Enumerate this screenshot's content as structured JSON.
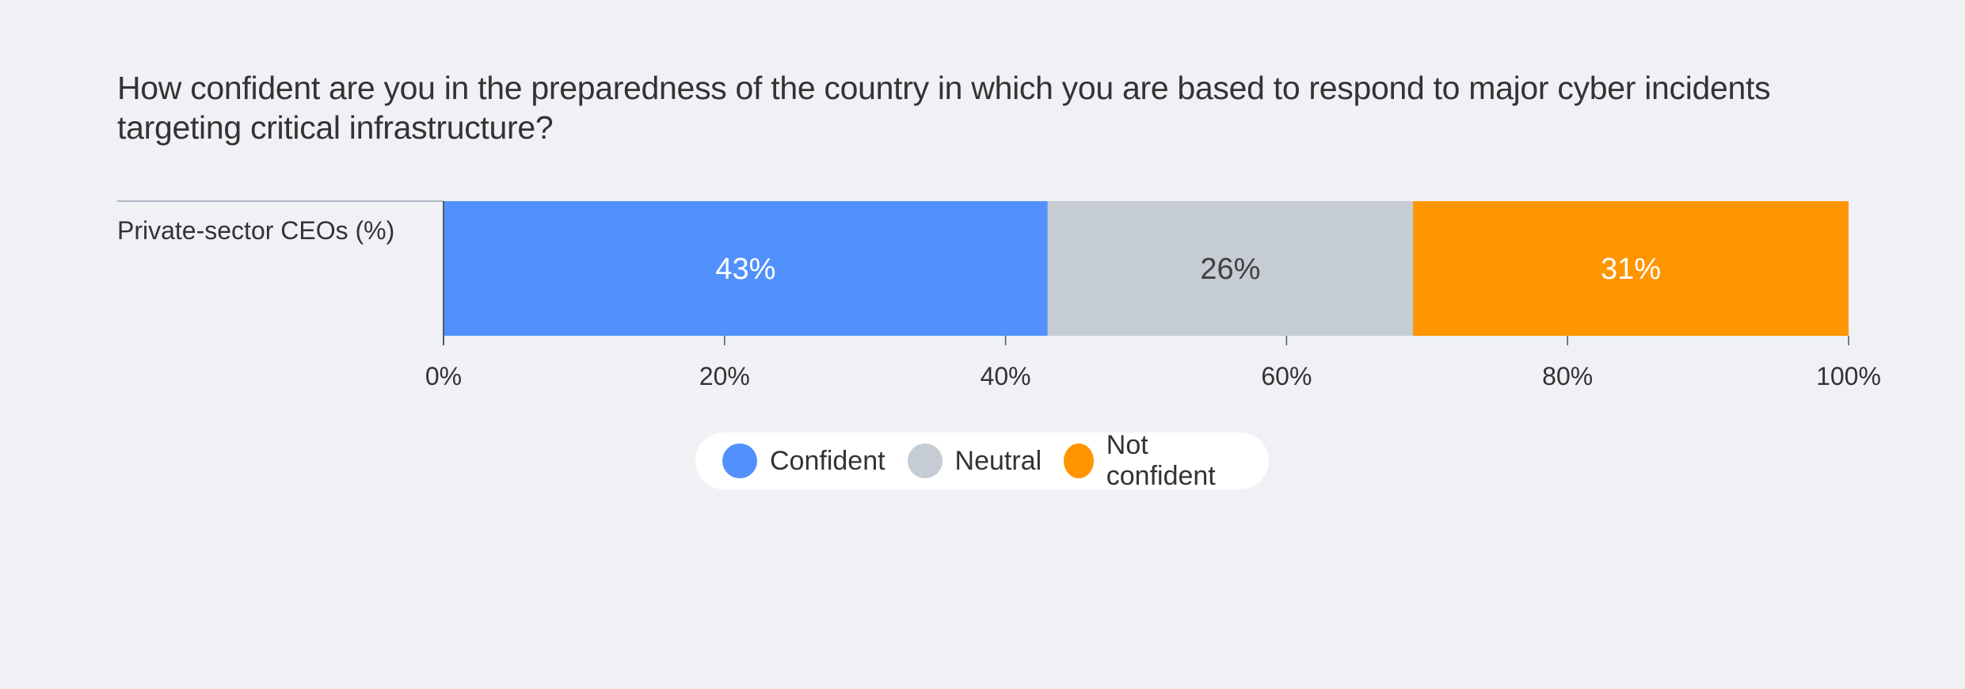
{
  "chart_data": {
    "type": "bar",
    "orientation": "horizontal",
    "stacked": true,
    "title": "How confident are you in the preparedness of the country in which you are based to respond to major cyber incidents targeting critical infrastructure?",
    "categories": [
      "Private-sector CEOs (%)"
    ],
    "series": [
      {
        "name": "Confident",
        "values": [
          43
        ],
        "color": "#5291fc",
        "label_color": "#ffffff"
      },
      {
        "name": "Neutral",
        "values": [
          26
        ],
        "color": "#c5ccd3",
        "label_color": "#404040"
      },
      {
        "name": "Not confident",
        "values": [
          31
        ],
        "color": "#ff9500",
        "label_color": "#ffffff"
      }
    ],
    "data_labels": [
      "43%",
      "26%",
      "31%"
    ],
    "xlim": [
      0,
      100
    ],
    "xticks": [
      0,
      20,
      40,
      60,
      80,
      100
    ],
    "xtick_labels": [
      "0%",
      "20%",
      "40%",
      "60%",
      "80%",
      "100%"
    ],
    "grid": false,
    "legend_position": "bottom-center"
  },
  "colors": {
    "background": "#eff1f5",
    "axis": "#4a5a6a",
    "text": "#333333"
  }
}
